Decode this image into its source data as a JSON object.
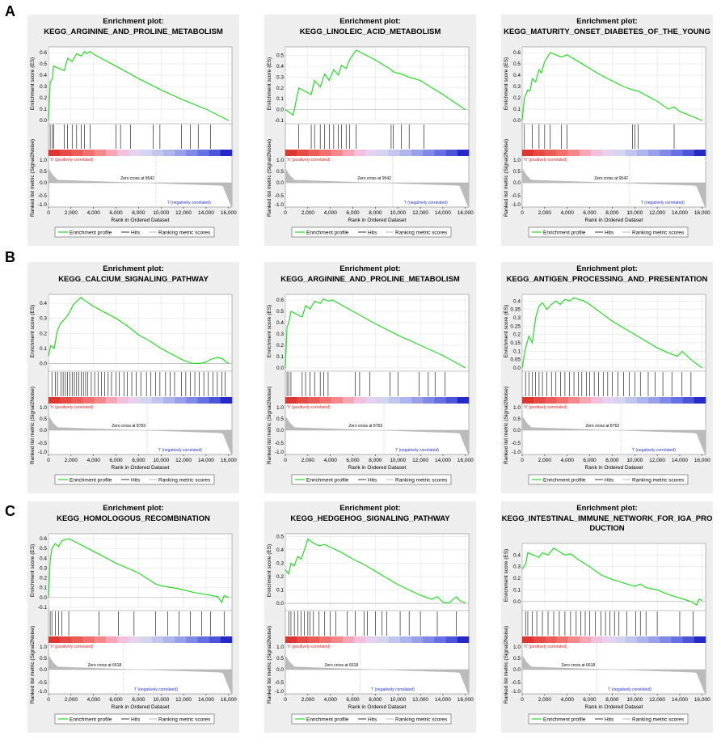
{
  "figure": {
    "row_labels": [
      "A",
      "B",
      "C"
    ]
  },
  "common": {
    "title_prefix": "Enrichment plot:",
    "es_ylabel": "Enrichment score (ES)",
    "metric_ylabel": "Ranked list metric (Signal2Noise)",
    "xlabel": "Rank in Ordered Dataset",
    "pos_label": "'h' (positively correlated)",
    "neg_label": "'l' (negatively correlated)",
    "legend": [
      "Enrichment profile",
      "Hits",
      "Ranking metric scores"
    ],
    "x_ticks": [
      0,
      2000,
      4000,
      6000,
      8000,
      10000,
      12000,
      14000,
      16000
    ],
    "x_tick_labels": [
      "0",
      "2,000",
      "4,000",
      "6,000",
      "8,000",
      "10,000",
      "12,000",
      "14,000",
      "16,000"
    ],
    "xlim": [
      0,
      16300
    ],
    "metric_yticks": [
      "1.0",
      "0.5",
      "0.0",
      "-0.5",
      "-1.0"
    ],
    "colors": {
      "es_line": "#22dd22",
      "hit": "#000000",
      "metric_fill": "#bbbbbb",
      "panel_bg": "#eeeeee"
    }
  },
  "chart_data": [
    {
      "type": "line",
      "row": "A",
      "title_lines": [
        "KEGG_ARGININE_AND_PROLINE_METABOLISM"
      ],
      "ylim": [
        0.0,
        0.65
      ],
      "yticks": [
        0.0,
        0.1,
        0.2,
        0.3,
        0.4,
        0.5,
        0.6
      ],
      "zero_cross_label": "Zero cross at 9542",
      "zero_cross": 9542,
      "es_points": [
        [
          0,
          0.0
        ],
        [
          150,
          0.34
        ],
        [
          350,
          0.37
        ],
        [
          450,
          0.48
        ],
        [
          1400,
          0.44
        ],
        [
          1700,
          0.55
        ],
        [
          2100,
          0.52
        ],
        [
          2500,
          0.59
        ],
        [
          2900,
          0.57
        ],
        [
          3200,
          0.61
        ],
        [
          3400,
          0.59
        ],
        [
          3700,
          0.61
        ],
        [
          4100,
          0.58
        ],
        [
          6000,
          0.48
        ],
        [
          8000,
          0.37
        ],
        [
          10000,
          0.27
        ],
        [
          12000,
          0.18
        ],
        [
          14000,
          0.1
        ],
        [
          16000,
          0.0
        ]
      ],
      "hits": [
        150,
        350,
        450,
        1400,
        1700,
        2100,
        2500,
        2900,
        3200,
        3700,
        6000,
        6400,
        7300,
        9300,
        9900,
        11800,
        12600,
        13300,
        14400
      ]
    },
    {
      "type": "line",
      "row": "A",
      "title_lines": [
        "KEGG_LINOLEIC_ACID_METABOLISM"
      ],
      "ylim": [
        -0.1,
        0.58
      ],
      "yticks": [
        -0.1,
        0.0,
        0.1,
        0.2,
        0.3,
        0.4,
        0.5
      ],
      "zero_cross_label": "Zero cross at 9542",
      "zero_cross": 9542,
      "es_points": [
        [
          0,
          0.0
        ],
        [
          700,
          -0.05
        ],
        [
          1200,
          0.2
        ],
        [
          2300,
          0.14
        ],
        [
          2600,
          0.27
        ],
        [
          3100,
          0.21
        ],
        [
          3500,
          0.33
        ],
        [
          3900,
          0.27
        ],
        [
          4300,
          0.37
        ],
        [
          4700,
          0.32
        ],
        [
          5000,
          0.41
        ],
        [
          5400,
          0.38
        ],
        [
          5700,
          0.46
        ],
        [
          6300,
          0.55
        ],
        [
          8000,
          0.46
        ],
        [
          9400,
          0.37
        ],
        [
          9600,
          0.35
        ],
        [
          10300,
          0.33
        ],
        [
          11000,
          0.3
        ],
        [
          12000,
          0.27
        ],
        [
          12300,
          0.25
        ],
        [
          14000,
          0.14
        ],
        [
          16000,
          0.0
        ]
      ],
      "hits": [
        1200,
        2300,
        2600,
        3100,
        3500,
        3900,
        4300,
        4700,
        5000,
        5400,
        5700,
        6300,
        9400,
        9600,
        10300,
        11000,
        12300
      ]
    },
    {
      "type": "line",
      "row": "A",
      "title_lines": [
        "KEGG_MATURITY_ONSET_DIABETES_OF_THE_YOUNG"
      ],
      "ylim": [
        0.0,
        0.65
      ],
      "yticks": [
        0.0,
        0.1,
        0.2,
        0.3,
        0.4,
        0.5,
        0.6
      ],
      "zero_cross_label": "Zero cross at 9542",
      "zero_cross": 9542,
      "es_points": [
        [
          0,
          0.0
        ],
        [
          200,
          0.2
        ],
        [
          500,
          0.27
        ],
        [
          700,
          0.26
        ],
        [
          900,
          0.37
        ],
        [
          1200,
          0.34
        ],
        [
          1500,
          0.45
        ],
        [
          1700,
          0.42
        ],
        [
          2000,
          0.52
        ],
        [
          2500,
          0.6
        ],
        [
          3500,
          0.56
        ],
        [
          4000,
          0.58
        ],
        [
          5000,
          0.52
        ],
        [
          7000,
          0.4
        ],
        [
          9000,
          0.3
        ],
        [
          9800,
          0.27
        ],
        [
          10300,
          0.26
        ],
        [
          12000,
          0.17
        ],
        [
          13000,
          0.1
        ],
        [
          13500,
          0.12
        ],
        [
          14000,
          0.08
        ],
        [
          16000,
          0.0
        ]
      ],
      "hits": [
        200,
        900,
        1500,
        2000,
        2500,
        3500,
        4000,
        9800,
        10000,
        10300,
        13500
      ]
    },
    {
      "type": "line",
      "row": "B",
      "title_lines": [
        "KEGG_CALCIUM_SIGNALING_PATHWAY"
      ],
      "ylim": [
        -0.03,
        0.46
      ],
      "yticks": [
        0.0,
        0.1,
        0.2,
        0.3,
        0.4
      ],
      "zero_cross_label": "Zero cross at 8763",
      "zero_cross": 8763,
      "es_points": [
        [
          0,
          0.05
        ],
        [
          200,
          0.12
        ],
        [
          500,
          0.1
        ],
        [
          800,
          0.22
        ],
        [
          1100,
          0.27
        ],
        [
          1500,
          0.3
        ],
        [
          1800,
          0.33
        ],
        [
          2200,
          0.39
        ],
        [
          2600,
          0.42
        ],
        [
          2900,
          0.44
        ],
        [
          3200,
          0.42
        ],
        [
          4000,
          0.38
        ],
        [
          5000,
          0.34
        ],
        [
          6000,
          0.3
        ],
        [
          7000,
          0.25
        ],
        [
          8000,
          0.19
        ],
        [
          9000,
          0.15
        ],
        [
          10000,
          0.1
        ],
        [
          11000,
          0.06
        ],
        [
          12000,
          0.02
        ],
        [
          12800,
          0.0
        ],
        [
          13500,
          0.0
        ],
        [
          14000,
          0.01
        ],
        [
          14500,
          0.03
        ],
        [
          15000,
          0.04
        ],
        [
          15500,
          0.03
        ],
        [
          15800,
          0.01
        ],
        [
          16000,
          0.0
        ]
      ],
      "hits": [
        300,
        600,
        800,
        1100,
        1300,
        1500,
        1700,
        1900,
        2100,
        2300,
        2500,
        2700,
        2900,
        3100,
        3300,
        3500,
        3800,
        4100,
        4400,
        4700,
        5000,
        5300,
        5600,
        6000,
        6300,
        6700,
        7000,
        7400,
        7800,
        8200,
        8700,
        9100,
        9500,
        9900,
        10400,
        10800,
        11200,
        11800,
        12200,
        12600,
        13000,
        13400,
        13800,
        14200,
        14600,
        15000,
        15400,
        15700
      ]
    },
    {
      "type": "line",
      "row": "B",
      "title_lines": [
        "KEGG_ARGININE_AND_PROLINE_METABOLISM"
      ],
      "ylim": [
        0.0,
        0.65
      ],
      "yticks": [
        0.0,
        0.1,
        0.2,
        0.3,
        0.4,
        0.5,
        0.6
      ],
      "zero_cross_label": "Zero cross at 8763",
      "zero_cross": 8763,
      "es_points": [
        [
          0,
          0.0
        ],
        [
          150,
          0.36
        ],
        [
          300,
          0.4
        ],
        [
          500,
          0.5
        ],
        [
          1500,
          0.45
        ],
        [
          1800,
          0.55
        ],
        [
          2200,
          0.52
        ],
        [
          2600,
          0.59
        ],
        [
          3100,
          0.57
        ],
        [
          3400,
          0.61
        ],
        [
          3800,
          0.59
        ],
        [
          4200,
          0.6
        ],
        [
          6000,
          0.5
        ],
        [
          8000,
          0.39
        ],
        [
          10000,
          0.29
        ],
        [
          12000,
          0.2
        ],
        [
          14000,
          0.11
        ],
        [
          16000,
          0.0
        ]
      ],
      "hits": [
        150,
        300,
        500,
        1500,
        1800,
        2200,
        2600,
        3100,
        3400,
        3800,
        6200,
        6600,
        7500,
        9300,
        10000,
        11900,
        12700,
        13300,
        14200
      ]
    },
    {
      "type": "line",
      "row": "B",
      "title_lines": [
        "KEGG_ANTIGEN_PROCESSING_AND_PRESENTATION"
      ],
      "ylim": [
        0.0,
        0.44
      ],
      "yticks": [
        0.0,
        0.05,
        0.1,
        0.15,
        0.2,
        0.25,
        0.3,
        0.35,
        0.4
      ],
      "zero_cross_label": "Zero cross at 8763",
      "zero_cross": 8763,
      "es_points": [
        [
          0,
          0.0
        ],
        [
          300,
          0.12
        ],
        [
          600,
          0.19
        ],
        [
          900,
          0.15
        ],
        [
          1200,
          0.3
        ],
        [
          1500,
          0.37
        ],
        [
          1800,
          0.39
        ],
        [
          2200,
          0.35
        ],
        [
          2600,
          0.38
        ],
        [
          3000,
          0.4
        ],
        [
          3400,
          0.38
        ],
        [
          3800,
          0.41
        ],
        [
          4200,
          0.4
        ],
        [
          4600,
          0.42
        ],
        [
          5000,
          0.41
        ],
        [
          5500,
          0.4
        ],
        [
          6000,
          0.38
        ],
        [
          7000,
          0.33
        ],
        [
          8000,
          0.28
        ],
        [
          9000,
          0.24
        ],
        [
          10000,
          0.2
        ],
        [
          11000,
          0.16
        ],
        [
          12000,
          0.12
        ],
        [
          13000,
          0.09
        ],
        [
          13800,
          0.07
        ],
        [
          14200,
          0.1
        ],
        [
          15000,
          0.05
        ],
        [
          16000,
          0.0
        ]
      ],
      "hits": [
        300,
        600,
        900,
        1200,
        1500,
        1800,
        2200,
        2600,
        3000,
        3400,
        3800,
        4200,
        4600,
        5000,
        5300,
        5700,
        6000,
        6400,
        6800,
        7200,
        7600,
        8000,
        8500,
        9000,
        9500,
        10000,
        10500,
        11200,
        11800,
        12500,
        13300,
        14200,
        15000
      ]
    },
    {
      "type": "line",
      "row": "C",
      "title_lines": [
        "KEGG_HOMOLOGOUS_RECOMBINATION"
      ],
      "ylim": [
        -0.1,
        0.65
      ],
      "yticks": [
        -0.1,
        0.0,
        0.1,
        0.2,
        0.3,
        0.4,
        0.5,
        0.6
      ],
      "zero_cross_label": "Zero cross at 6618",
      "zero_cross": 6618,
      "es_points": [
        [
          0,
          0.0
        ],
        [
          150,
          0.38
        ],
        [
          300,
          0.5
        ],
        [
          600,
          0.55
        ],
        [
          900,
          0.52
        ],
        [
          1200,
          0.58
        ],
        [
          1500,
          0.59
        ],
        [
          1800,
          0.6
        ],
        [
          2500,
          0.56
        ],
        [
          4000,
          0.47
        ],
        [
          6000,
          0.35
        ],
        [
          8000,
          0.25
        ],
        [
          9500,
          0.14
        ],
        [
          10000,
          0.12
        ],
        [
          11500,
          0.09
        ],
        [
          13000,
          0.05
        ],
        [
          14000,
          0.03
        ],
        [
          15000,
          0.01
        ],
        [
          15400,
          -0.05
        ],
        [
          15600,
          0.02
        ],
        [
          16000,
          0.0
        ]
      ],
      "hits": [
        150,
        300,
        600,
        900,
        1200,
        1800,
        4500,
        6200,
        7600,
        9500,
        10600,
        11600,
        12600,
        13600,
        14400,
        15600
      ]
    },
    {
      "type": "line",
      "row": "C",
      "title_lines": [
        "KEGG_HEDGEHOG_SIGNALING_PATHWAY"
      ],
      "ylim": [
        -0.03,
        0.52
      ],
      "yticks": [
        0.0,
        0.1,
        0.2,
        0.3,
        0.4,
        0.5
      ],
      "zero_cross_label": "Zero cross at 6618",
      "zero_cross": 6618,
      "es_points": [
        [
          0,
          0.25
        ],
        [
          300,
          0.22
        ],
        [
          500,
          0.3
        ],
        [
          800,
          0.28
        ],
        [
          1100,
          0.35
        ],
        [
          1400,
          0.33
        ],
        [
          1700,
          0.4
        ],
        [
          2000,
          0.48
        ],
        [
          2500,
          0.45
        ],
        [
          3000,
          0.43
        ],
        [
          3500,
          0.44
        ],
        [
          4000,
          0.42
        ],
        [
          5000,
          0.38
        ],
        [
          6000,
          0.33
        ],
        [
          7000,
          0.29
        ],
        [
          8000,
          0.24
        ],
        [
          9000,
          0.19
        ],
        [
          10000,
          0.14
        ],
        [
          11000,
          0.1
        ],
        [
          12000,
          0.06
        ],
        [
          13000,
          0.03
        ],
        [
          13500,
          0.05
        ],
        [
          14000,
          0.01
        ],
        [
          14500,
          0.0
        ],
        [
          15200,
          0.05
        ],
        [
          15500,
          0.02
        ],
        [
          16000,
          0.0
        ]
      ],
      "hits": [
        300,
        500,
        800,
        1100,
        1400,
        1700,
        2000,
        2200,
        2500,
        3000,
        3500,
        4000,
        4500,
        5500,
        6200,
        7000,
        7300,
        8000,
        8600,
        9000,
        10200,
        11000,
        12000,
        13500,
        15200
      ]
    },
    {
      "type": "line",
      "row": "C",
      "title_lines": [
        "KEGG_INTESTINAL_IMMUNE_NETWORK_FOR_IGA_PRO",
        "DUCTION"
      ],
      "ylim": [
        -0.05,
        0.5
      ],
      "yticks": [
        0.0,
        0.1,
        0.2,
        0.3,
        0.4
      ],
      "zero_cross_label": "Zero cross at 6618",
      "zero_cross": 6618,
      "es_points": [
        [
          0,
          0.28
        ],
        [
          300,
          0.32
        ],
        [
          500,
          0.42
        ],
        [
          1000,
          0.4
        ],
        [
          1500,
          0.38
        ],
        [
          1800,
          0.42
        ],
        [
          2300,
          0.4
        ],
        [
          2800,
          0.46
        ],
        [
          3300,
          0.43
        ],
        [
          3800,
          0.4
        ],
        [
          4300,
          0.41
        ],
        [
          5000,
          0.36
        ],
        [
          6000,
          0.3
        ],
        [
          7000,
          0.23
        ],
        [
          8000,
          0.19
        ],
        [
          9000,
          0.16
        ],
        [
          10000,
          0.13
        ],
        [
          10500,
          0.15
        ],
        [
          11000,
          0.12
        ],
        [
          12000,
          0.1
        ],
        [
          13000,
          0.06
        ],
        [
          14000,
          0.03
        ],
        [
          15000,
          0.0
        ],
        [
          15500,
          -0.03
        ],
        [
          15700,
          0.02
        ],
        [
          16000,
          0.01
        ]
      ],
      "hits": [
        300,
        500,
        900,
        1300,
        1800,
        2300,
        2800,
        3300,
        3800,
        4300,
        4800,
        5200,
        5600,
        6000,
        6500,
        7000,
        7400,
        7800,
        8200,
        8600,
        9300,
        10100,
        10500,
        11000,
        12000,
        14000,
        15200
      ]
    }
  ]
}
